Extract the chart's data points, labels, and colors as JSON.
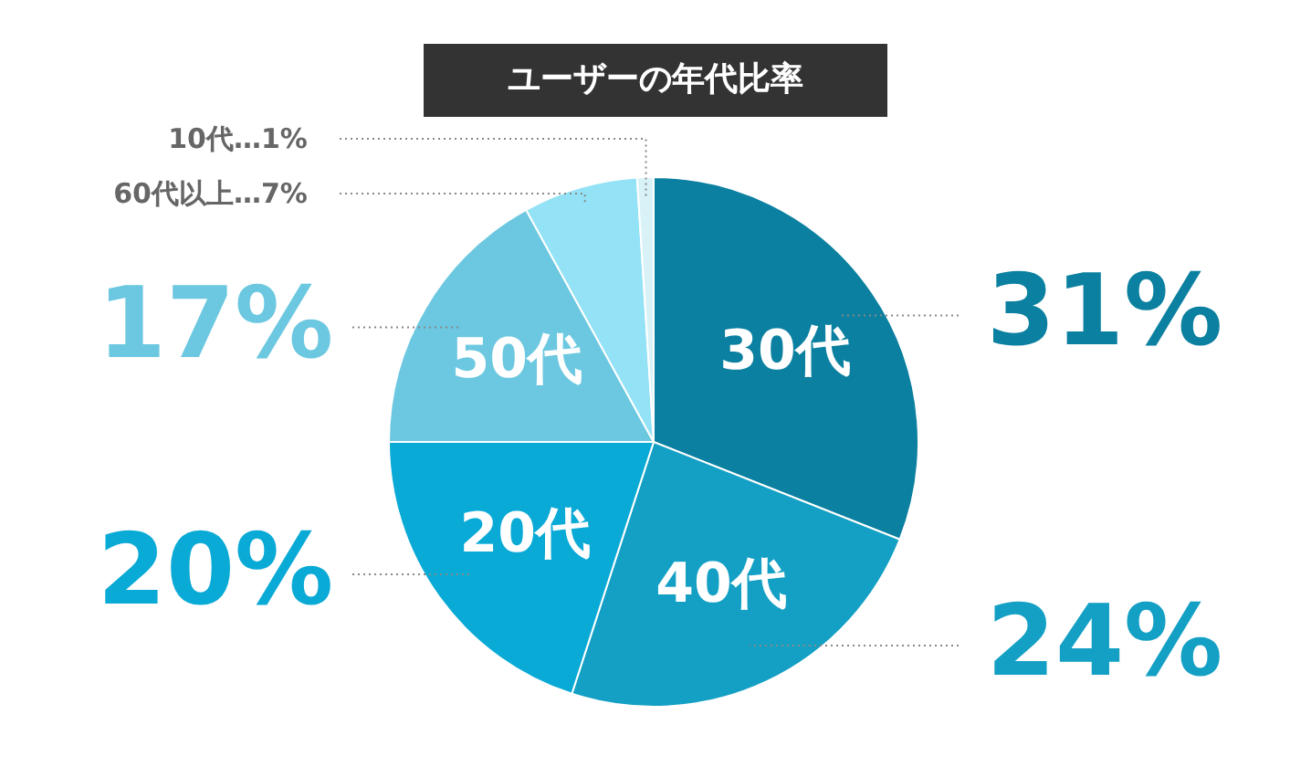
{
  "chart_data": {
    "type": "pie",
    "title": "ユーザーの年代比率",
    "categories": [
      "30代",
      "40代",
      "20代",
      "50代",
      "60代以上",
      "10代"
    ],
    "values": [
      31,
      24,
      20,
      17,
      7,
      1
    ],
    "value_labels": [
      "31%",
      "24%",
      "20%",
      "17%",
      "…7%",
      "…1%"
    ],
    "colors": [
      "#0b80a0",
      "#14a0c4",
      "#0aaad6",
      "#6cc8e0",
      "#93e2f6",
      "#d8f2f8"
    ]
  }
}
